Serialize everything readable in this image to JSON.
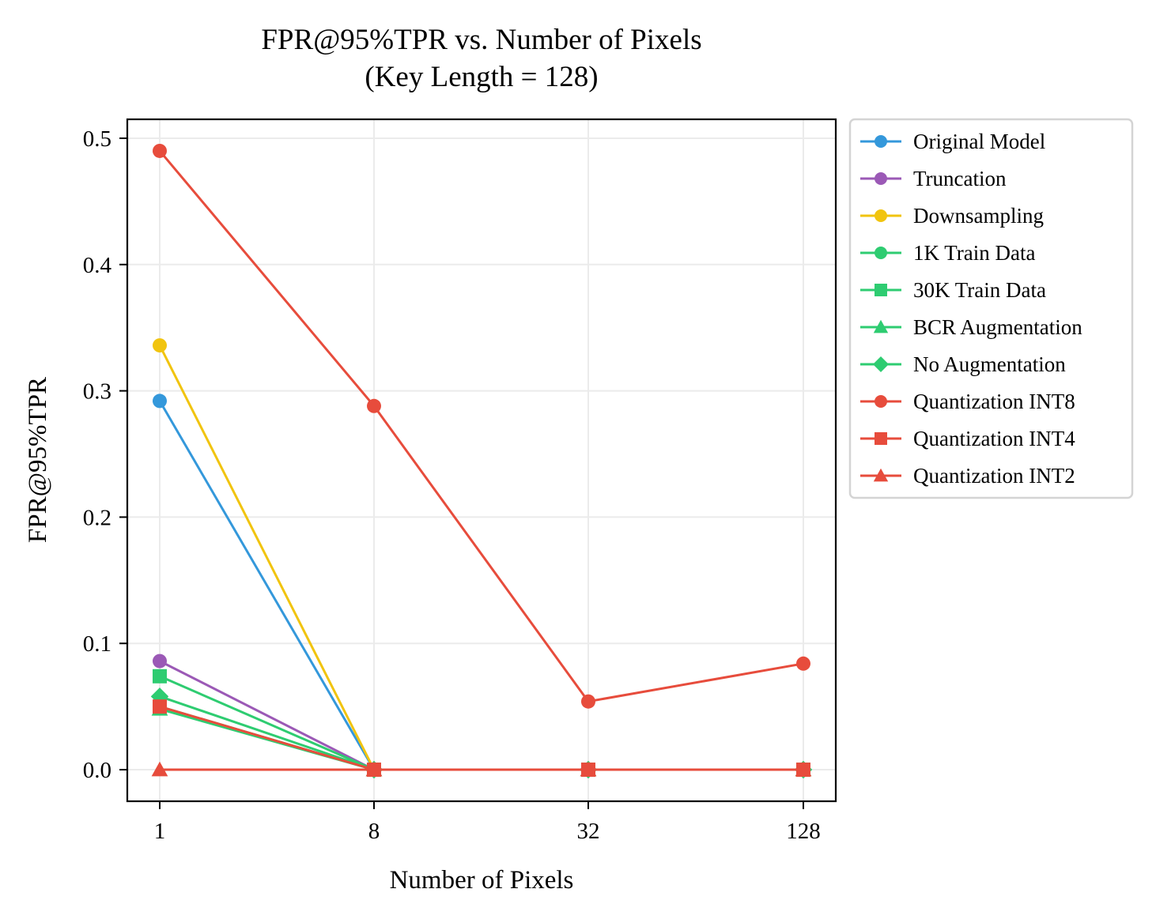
{
  "chart_data": {
    "type": "line",
    "title": "FPR@95%TPR vs. Number of Pixels",
    "subtitle": "(Key Length = 128)",
    "xlabel": "Number of Pixels",
    "ylabel": "FPR@95%TPR",
    "x": [
      "1",
      "8",
      "32",
      "128"
    ],
    "ylim": [
      -0.025,
      0.515
    ],
    "yticks": [
      "0.0",
      "0.1",
      "0.2",
      "0.3",
      "0.4",
      "0.5"
    ],
    "grid": true,
    "legend_position": "outside-right",
    "series": [
      {
        "name": "Original Model",
        "color": "#3498db",
        "marker": "circle",
        "values": [
          0.292,
          0.0,
          0.0,
          0.0
        ]
      },
      {
        "name": "Truncation",
        "color": "#9b59b6",
        "marker": "circle",
        "values": [
          0.086,
          0.0,
          0.0,
          0.0
        ]
      },
      {
        "name": "Downsampling",
        "color": "#f1c40f",
        "marker": "circle",
        "values": [
          0.336,
          0.0,
          0.0,
          0.0
        ]
      },
      {
        "name": "1K Train Data",
        "color": "#2ecc71",
        "marker": "circle",
        "values": [
          0.05,
          0.0,
          0.0,
          0.0
        ]
      },
      {
        "name": "30K Train Data",
        "color": "#2ecc71",
        "marker": "square",
        "values": [
          0.074,
          0.0,
          0.0,
          0.0
        ]
      },
      {
        "name": "BCR Augmentation",
        "color": "#2ecc71",
        "marker": "triangle",
        "values": [
          0.048,
          0.0,
          0.0,
          0.0
        ]
      },
      {
        "name": "No Augmentation",
        "color": "#2ecc71",
        "marker": "diamond",
        "values": [
          0.058,
          0.0,
          0.0,
          0.0
        ]
      },
      {
        "name": "Quantization INT8",
        "color": "#e74c3c",
        "marker": "circle",
        "values": [
          0.49,
          0.288,
          0.054,
          0.084
        ]
      },
      {
        "name": "Quantization INT4",
        "color": "#e74c3c",
        "marker": "square",
        "values": [
          0.05,
          0.0,
          0.0,
          0.0
        ]
      },
      {
        "name": "Quantization INT2",
        "color": "#e74c3c",
        "marker": "triangle",
        "values": [
          0.0,
          0.0,
          0.0,
          0.0
        ]
      }
    ]
  }
}
